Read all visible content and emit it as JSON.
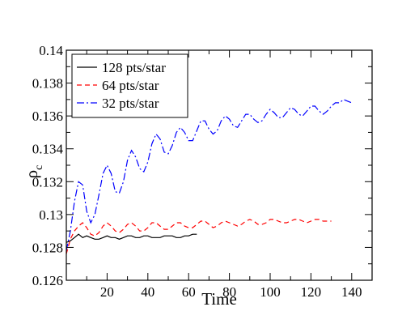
{
  "chart_data": {
    "type": "line",
    "xlabel": "Time",
    "ylabel_main": "ρ",
    "ylabel_sub": "c",
    "xlim": [
      0,
      150
    ],
    "ylim": [
      0.126,
      0.14
    ],
    "x_ticks": [
      20,
      40,
      60,
      80,
      100,
      120,
      140
    ],
    "y_ticks": [
      0.126,
      0.128,
      0.13,
      0.132,
      0.134,
      0.136,
      0.138,
      0.14
    ],
    "x_tick_labels": [
      "20",
      "40",
      "60",
      "80",
      "100",
      "120",
      "140"
    ],
    "y_tick_labels": [
      "0.126",
      "0.128",
      "0.13",
      "0.132",
      "0.134",
      "0.136",
      "0.138",
      "0.14"
    ],
    "grid": false,
    "legend_position": "top-left",
    "series": [
      {
        "name": "128 pts/star",
        "color": "#000000",
        "dash": "solid",
        "x": [
          0,
          2,
          4,
          6,
          8,
          10,
          12,
          14,
          16,
          18,
          20,
          22,
          24,
          26,
          28,
          30,
          32,
          34,
          36,
          38,
          40,
          42,
          44,
          46,
          48,
          50,
          52,
          54,
          56,
          58,
          60,
          62,
          64
        ],
        "y": [
          0.1283,
          0.1284,
          0.1286,
          0.1288,
          0.1286,
          0.1287,
          0.1286,
          0.1285,
          0.1285,
          0.1286,
          0.1287,
          0.1286,
          0.1286,
          0.1285,
          0.1286,
          0.1287,
          0.1287,
          0.1286,
          0.1286,
          0.1287,
          0.1287,
          0.1286,
          0.1286,
          0.1286,
          0.1287,
          0.1287,
          0.1287,
          0.1286,
          0.1286,
          0.1287,
          0.1287,
          0.1288,
          0.1288
        ]
      },
      {
        "name": "64 pts/star",
        "color": "#ff0000",
        "dash": "dashed",
        "x": [
          0,
          2,
          4,
          6,
          8,
          10,
          12,
          14,
          16,
          18,
          20,
          22,
          24,
          26,
          28,
          30,
          32,
          34,
          36,
          38,
          40,
          42,
          44,
          46,
          48,
          50,
          52,
          54,
          56,
          58,
          60,
          62,
          64,
          66,
          68,
          70,
          72,
          74,
          76,
          78,
          80,
          82,
          84,
          86,
          88,
          90,
          92,
          94,
          96,
          98,
          100,
          102,
          104,
          106,
          108,
          110,
          112,
          114,
          116,
          118,
          120,
          122,
          124,
          126,
          128,
          130
        ],
        "y": [
          0.1276,
          0.1285,
          0.129,
          0.1293,
          0.1295,
          0.1292,
          0.1288,
          0.1287,
          0.1289,
          0.1293,
          0.1295,
          0.1293,
          0.129,
          0.1289,
          0.1291,
          0.1294,
          0.1295,
          0.1293,
          0.129,
          0.129,
          0.1292,
          0.1295,
          0.1295,
          0.1293,
          0.1291,
          0.1291,
          0.1293,
          0.1295,
          0.1295,
          0.1293,
          0.1292,
          0.1292,
          0.1294,
          0.1296,
          0.1296,
          0.1294,
          0.1292,
          0.1293,
          0.1295,
          0.1296,
          0.1295,
          0.1294,
          0.1293,
          0.1294,
          0.1296,
          0.1297,
          0.1296,
          0.1294,
          0.1294,
          0.1295,
          0.1297,
          0.1297,
          0.1296,
          0.1295,
          0.1295,
          0.1296,
          0.1297,
          0.1297,
          0.1296,
          0.1295,
          0.1296,
          0.1297,
          0.1297,
          0.1296,
          0.1296,
          0.1296
        ]
      },
      {
        "name": "32 pts/star",
        "color": "#0000ff",
        "dash": "dashdot",
        "x": [
          0,
          2,
          4,
          6,
          8,
          10,
          12,
          14,
          16,
          18,
          20,
          22,
          24,
          26,
          28,
          30,
          32,
          34,
          36,
          38,
          40,
          42,
          44,
          46,
          48,
          50,
          52,
          54,
          56,
          58,
          60,
          62,
          64,
          66,
          68,
          70,
          72,
          74,
          76,
          78,
          80,
          82,
          84,
          86,
          88,
          90,
          92,
          94,
          96,
          98,
          100,
          102,
          104,
          106,
          108,
          110,
          112,
          114,
          116,
          118,
          120,
          122,
          124,
          126,
          128,
          130,
          132,
          134,
          136,
          138,
          140
        ],
        "y": [
          0.1278,
          0.129,
          0.1308,
          0.132,
          0.1318,
          0.1302,
          0.1295,
          0.13,
          0.1312,
          0.1325,
          0.133,
          0.1325,
          0.1314,
          0.1313,
          0.132,
          0.1333,
          0.1339,
          0.1335,
          0.1328,
          0.1326,
          0.1332,
          0.1343,
          0.1349,
          0.1346,
          0.1338,
          0.1337,
          0.1342,
          0.135,
          0.1353,
          0.135,
          0.1345,
          0.1345,
          0.1351,
          0.1357,
          0.1357,
          0.1352,
          0.1349,
          0.1351,
          0.1357,
          0.136,
          0.1358,
          0.1354,
          0.1353,
          0.1357,
          0.1361,
          0.1361,
          0.1358,
          0.1356,
          0.1357,
          0.1361,
          0.1364,
          0.1362,
          0.1359,
          0.1359,
          0.1362,
          0.1365,
          0.1364,
          0.1361,
          0.136,
          0.1363,
          0.1366,
          0.1366,
          0.1363,
          0.1361,
          0.1363,
          0.1366,
          0.1368,
          0.1368,
          0.137,
          0.1369,
          0.1368
        ]
      }
    ]
  }
}
